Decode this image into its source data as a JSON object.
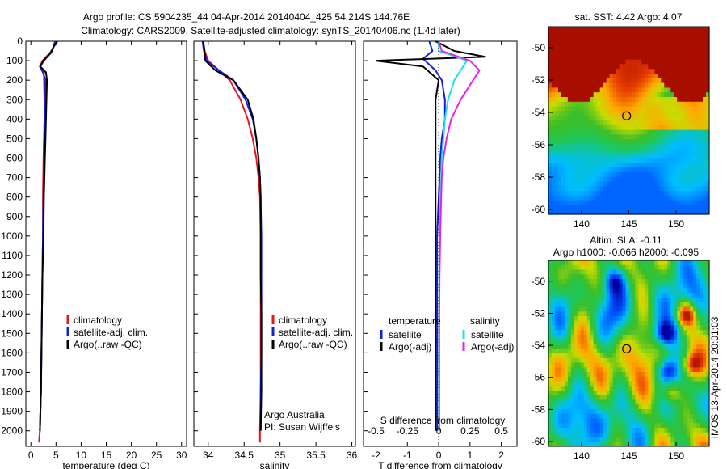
{
  "header": {
    "title_line1": "Argo profile: CS 5904235_44 04-Apr-2014 20140404_425 54.214S 144.76E",
    "title_line2": "Climatology: CARS2009. Satellite-adjusted climatology: synTS_20140406.nc (1.4d later)"
  },
  "colors": {
    "climatology": "#e8141c",
    "satellite": "#1020e0",
    "argo": "#000000",
    "salinity_sat": "#22e0e8",
    "salinity_argo": "#e820e8"
  },
  "chart_data": [
    {
      "type": "line",
      "name": "temperature-panel",
      "xlabel": "temperature (deg C)",
      "ylabel": "",
      "xlim": [
        -1,
        31
      ],
      "ylim": [
        2080,
        0
      ],
      "x_ticks": [
        0,
        5,
        10,
        15,
        20,
        25,
        30
      ],
      "y_ticks": [
        0,
        100,
        200,
        300,
        400,
        500,
        600,
        700,
        800,
        900,
        1000,
        1100,
        1200,
        1300,
        1400,
        1500,
        1600,
        1700,
        1800,
        1900,
        2000
      ],
      "legend": [
        "climatology",
        "satellite-adj. clim.",
        "Argo(..raw -QC)"
      ],
      "series": [
        {
          "key": "climatology",
          "color": "#e8141c",
          "x": [
            5.3,
            4.5,
            3.8,
            2.3,
            1.8,
            2.6,
            2.6,
            2.7,
            2.7,
            2.6,
            2.5,
            2.4,
            2.4,
            2.3,
            2.2,
            2.1,
            2.0,
            1.9,
            1.8,
            1.6
          ],
          "y": [
            0,
            30,
            60,
            100,
            130,
            160,
            200,
            300,
            400,
            500,
            600,
            800,
            1000,
            1200,
            1400,
            1600,
            1800,
            1900,
            2000,
            2060
          ]
        },
        {
          "key": "satellite",
          "color": "#1020e0",
          "x": [
            4.8,
            4.5,
            3.9,
            2.6,
            1.8,
            2.4,
            2.9,
            2.9,
            2.8,
            2.7,
            2.6,
            2.5,
            2.4,
            2.3,
            2.2,
            2.1,
            2.0,
            1.9,
            1.8
          ],
          "y": [
            0,
            30,
            60,
            100,
            130,
            160,
            200,
            300,
            400,
            500,
            600,
            800,
            1000,
            1200,
            1400,
            1600,
            1800,
            1900,
            2000
          ]
        },
        {
          "key": "argo",
          "color": "#000000",
          "x": [
            5.2,
            4.5,
            4.0,
            2.5,
            1.9,
            3.0,
            3.2,
            3.1,
            3.0,
            2.9,
            2.8,
            2.6,
            2.5,
            2.3,
            2.2,
            2.1,
            2.0,
            1.9,
            1.8
          ],
          "y": [
            0,
            30,
            60,
            100,
            130,
            160,
            200,
            300,
            400,
            500,
            600,
            800,
            1000,
            1200,
            1400,
            1600,
            1800,
            1900,
            2000
          ]
        }
      ]
    },
    {
      "type": "line",
      "name": "salinity-panel",
      "xlabel": "salinity",
      "xlim": [
        33.8,
        36.05
      ],
      "ylim": [
        2080,
        0
      ],
      "x_ticks": [
        34,
        34.5,
        35,
        35.5,
        36
      ],
      "legend": [
        "climatology",
        "satellite-adj. clim.",
        "Argo(..raw -QC)"
      ],
      "annotation": [
        "Argo Australia",
        "PI: Susan Wijffels"
      ],
      "series": [
        {
          "key": "climatology",
          "color": "#e8141c",
          "x": [
            33.93,
            33.95,
            34.0,
            34.15,
            34.3,
            34.45,
            34.55,
            34.62,
            34.67,
            34.7,
            34.72,
            34.73,
            34.73,
            34.73,
            34.73,
            34.73,
            34.72,
            34.72
          ],
          "y": [
            0,
            50,
            100,
            150,
            200,
            300,
            400,
            500,
            600,
            700,
            800,
            1000,
            1200,
            1400,
            1600,
            1800,
            2000,
            2060
          ]
        },
        {
          "key": "satellite",
          "color": "#1020e0",
          "x": [
            33.92,
            33.94,
            33.98,
            34.15,
            34.35,
            34.52,
            34.62,
            34.67,
            34.7,
            34.72,
            34.73,
            34.74,
            34.74,
            34.74,
            34.74,
            34.73,
            34.73
          ],
          "y": [
            0,
            50,
            100,
            150,
            200,
            300,
            400,
            500,
            600,
            700,
            800,
            1000,
            1200,
            1400,
            1600,
            1800,
            2000
          ]
        },
        {
          "key": "argo",
          "color": "#000000",
          "x": [
            33.93,
            33.95,
            33.96,
            34.1,
            34.35,
            34.55,
            34.63,
            34.67,
            34.7,
            34.72,
            34.73,
            34.73,
            34.73,
            34.74,
            34.74,
            34.74,
            34.73
          ],
          "y": [
            0,
            50,
            100,
            150,
            200,
            300,
            400,
            500,
            600,
            700,
            800,
            1000,
            1200,
            1400,
            1600,
            1800,
            2000
          ]
        }
      ]
    },
    {
      "type": "line",
      "name": "difference-panel",
      "xlabel": "T difference from climatology",
      "xlabel_top": "S difference from climatology",
      "xlim": [
        -2.4,
        2.5
      ],
      "ylim": [
        2080,
        0
      ],
      "x_ticks": [
        -2,
        -1,
        0,
        1,
        2
      ],
      "x_ticks_top": [
        "-0.5",
        "-0.25",
        "0",
        "0.25",
        "0.5"
      ],
      "legend_left_title": "temperature",
      "legend_right_title": "salinity",
      "legend": [
        "satellite",
        "Argo(-adj)",
        "satellite",
        "Argo(-adj)"
      ],
      "series": [
        {
          "key": "t_satellite",
          "color": "#1020e0",
          "x": [
            -0.3,
            -0.2,
            -0.5,
            -0.1,
            0.1,
            0.2,
            0.2,
            0.1,
            0.05,
            0.0,
            -0.05,
            -0.05,
            -0.05,
            -0.05,
            -0.05,
            -0.05
          ],
          "y": [
            0,
            50,
            90,
            150,
            200,
            300,
            400,
            500,
            600,
            800,
            1000,
            1200,
            1400,
            1600,
            1800,
            2000
          ]
        },
        {
          "key": "t_argo",
          "color": "#000000",
          "x": [
            -0.1,
            0.5,
            1.5,
            -2.0,
            -0.5,
            0.0,
            -0.1,
            -0.1,
            -0.1,
            -0.1,
            -0.1,
            -0.1,
            -0.1,
            -0.1,
            -0.1,
            -0.1
          ],
          "y": [
            0,
            50,
            80,
            100,
            130,
            200,
            300,
            400,
            500,
            600,
            800,
            1000,
            1200,
            1400,
            1600,
            2000
          ]
        },
        {
          "key": "s_satellite",
          "color": "#22e0e8",
          "x": [
            0.0,
            0.0,
            0.9,
            0.7,
            0.5,
            0.3,
            0.2,
            0.15,
            0.1,
            0.08,
            0.05,
            0.03,
            0.02,
            0.02,
            0.01,
            0.01
          ],
          "y": [
            0,
            50,
            100,
            150,
            200,
            300,
            400,
            500,
            600,
            700,
            800,
            1000,
            1200,
            1400,
            1600,
            2000
          ]
        },
        {
          "key": "s_argo",
          "color": "#e820e8",
          "x": [
            0.0,
            0.1,
            1.0,
            1.3,
            1.1,
            0.7,
            0.4,
            0.25,
            0.15,
            0.1,
            0.08,
            0.05,
            0.03,
            0.02,
            0.02,
            0.02
          ],
          "y": [
            0,
            50,
            100,
            150,
            200,
            300,
            400,
            500,
            600,
            700,
            800,
            1000,
            1200,
            1400,
            1600,
            2000
          ]
        }
      ]
    },
    {
      "type": "heatmap",
      "name": "sst-map",
      "title": "sat. SST: 4.42  Argo: 4.07",
      "x_ticks": [
        140,
        145,
        150
      ],
      "y_ticks": [
        -50,
        -52,
        -54,
        -56,
        -58,
        -60
      ],
      "xlim": [
        136.5,
        153.5
      ],
      "ylim": [
        -60.3,
        -48.7
      ],
      "marker": {
        "lon": 144.76,
        "lat": -54.214
      }
    },
    {
      "type": "heatmap",
      "name": "sla-map",
      "title_line1": "Altim. SLA: -0.11",
      "title_line2": "Argo h1000: -0.066  h2000: -0.095",
      "x_ticks": [
        140,
        145,
        150
      ],
      "y_ticks": [
        -50,
        -52,
        -54,
        -56,
        -58,
        -60
      ],
      "xlim": [
        136.5,
        153.5
      ],
      "ylim": [
        -60.3,
        -48.7
      ],
      "marker": {
        "lon": 144.76,
        "lat": -54.214
      }
    }
  ],
  "watermark": "IMOS 13-Apr-2014 20:01:03"
}
